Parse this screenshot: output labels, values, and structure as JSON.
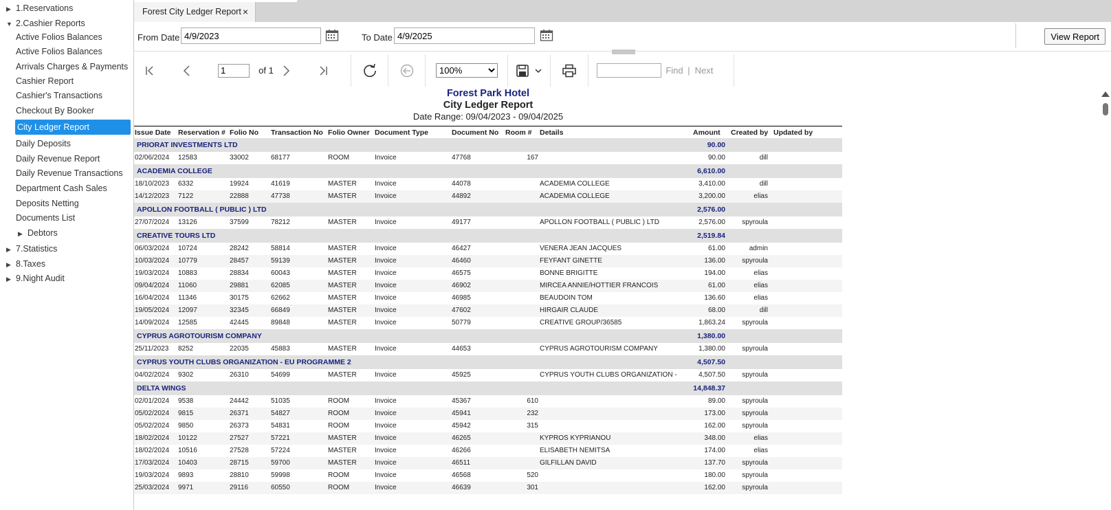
{
  "sidebar": {
    "items": [
      {
        "label": "1.Reservations",
        "type": "folder",
        "expanded": false
      },
      {
        "label": "2.Cashier Reports",
        "type": "folder",
        "expanded": true
      },
      {
        "label": "Active Folios Balances",
        "type": "leaf"
      },
      {
        "label": "Active Folios Balances",
        "type": "leaf"
      },
      {
        "label": "Arrivals Charges & Payments",
        "type": "leaf"
      },
      {
        "label": "Cashier Report",
        "type": "leaf"
      },
      {
        "label": "Cashier's Transactions",
        "type": "leaf"
      },
      {
        "label": "Checkout By Booker",
        "type": "leaf"
      },
      {
        "label": "City Ledger Report",
        "type": "leaf",
        "active": true
      },
      {
        "label": "Daily Deposits",
        "type": "leaf"
      },
      {
        "label": "Daily Revenue Report",
        "type": "leaf"
      },
      {
        "label": "Daily Revenue Transactions",
        "type": "leaf"
      },
      {
        "label": "Department Cash Sales",
        "type": "leaf"
      },
      {
        "label": "Deposits Netting",
        "type": "leaf"
      },
      {
        "label": "Documents List",
        "type": "leaf"
      },
      {
        "label": "Debtors",
        "type": "subfolder",
        "expanded": false
      },
      {
        "label": "7.Statistics",
        "type": "folder",
        "expanded": false
      },
      {
        "label": "8.Taxes",
        "type": "folder",
        "expanded": false
      },
      {
        "label": "9.Night Audit",
        "type": "folder",
        "expanded": false
      }
    ]
  },
  "tab": {
    "label": "Forest City Ledger Report",
    "close": "×"
  },
  "params": {
    "from_label": "From Date",
    "from_value": "4/9/2023",
    "to_label": "To Date",
    "to_value": "4/9/2025",
    "view_button": "View Report"
  },
  "toolbar": {
    "page_value": "1",
    "page_of": "of 1",
    "zoom": "100%",
    "find": "Find",
    "separator": "|",
    "next": "Next"
  },
  "report": {
    "hotel": "Forest Park Hotel",
    "title": "City Ledger Report",
    "date_range": "Date Range: 09/04/2023  - 09/04/2025",
    "columns": [
      "Issue Date",
      "Reservation #",
      "Folio No",
      "Transaction No",
      "Folio Owner",
      "Document Type",
      "Document No",
      "Room #",
      "Details",
      "Amount",
      "Created by",
      "Updated by"
    ],
    "rows": [
      {
        "group": true,
        "name": "PRIORAT INVESTMENTS LTD",
        "amount": "90.00"
      },
      {
        "c": [
          "02/06/2024",
          "12583",
          "33002",
          "68177",
          "ROOM",
          "Invoice",
          "47768",
          "167",
          "",
          "90.00",
          "dill",
          ""
        ]
      },
      {
        "group": true,
        "name": "ACADEMIA COLLEGE",
        "amount": "6,610.00"
      },
      {
        "c": [
          "18/10/2023",
          "6332",
          "19924",
          "41619",
          "MASTER",
          "Invoice",
          "44078",
          "",
          "ACADEMIA COLLEGE",
          "3,410.00",
          "dill",
          ""
        ]
      },
      {
        "c": [
          "14/12/2023",
          "7122",
          "22888",
          "47738",
          "MASTER",
          "Invoice",
          "44892",
          "",
          "ACADEMIA COLLEGE",
          "3,200.00",
          "elias",
          ""
        ]
      },
      {
        "group": true,
        "name": "APOLLON FOOTBALL ( PUBLIC ) LTD",
        "amount": "2,576.00"
      },
      {
        "c": [
          "27/07/2024",
          "13126",
          "37599",
          "78212",
          "MASTER",
          "Invoice",
          "49177",
          "",
          "APOLLON FOOTBALL ( PUBLIC ) LTD",
          "2,576.00",
          "spyroula",
          ""
        ]
      },
      {
        "group": true,
        "name": "CREATIVE TOURS LTD",
        "amount": "2,519.84"
      },
      {
        "c": [
          "06/03/2024",
          "10724",
          "28242",
          "58814",
          "MASTER",
          "Invoice",
          "46427",
          "",
          "VENERA JEAN JACQUES",
          "61.00",
          "admin",
          ""
        ]
      },
      {
        "c": [
          "10/03/2024",
          "10779",
          "28457",
          "59139",
          "MASTER",
          "Invoice",
          "46460",
          "",
          "FEYFANT GINETTE",
          "136.00",
          "spyroula",
          ""
        ]
      },
      {
        "c": [
          "19/03/2024",
          "10883",
          "28834",
          "60043",
          "MASTER",
          "Invoice",
          "46575",
          "",
          "BONNE BRIGITTE",
          "194.00",
          "elias",
          ""
        ]
      },
      {
        "c": [
          "09/04/2024",
          "11060",
          "29881",
          "62085",
          "MASTER",
          "Invoice",
          "46902",
          "",
          "MIRCEA ANNIE/HOTTIER FRANCOIS",
          "61.00",
          "elias",
          ""
        ]
      },
      {
        "c": [
          "16/04/2024",
          "11346",
          "30175",
          "62662",
          "MASTER",
          "Invoice",
          "46985",
          "",
          "BEAUDOIN TOM",
          "136.60",
          "elias",
          ""
        ]
      },
      {
        "c": [
          "19/05/2024",
          "12097",
          "32345",
          "66849",
          "MASTER",
          "Invoice",
          "47602",
          "",
          "HIRGAIR CLAUDE",
          "68.00",
          "dill",
          ""
        ]
      },
      {
        "c": [
          "14/09/2024",
          "12585",
          "42445",
          "89848",
          "MASTER",
          "Invoice",
          "50779",
          "",
          "CREATIVE GROUP/36585",
          "1,863.24",
          "spyroula",
          ""
        ]
      },
      {
        "group": true,
        "name": "CYPRUS AGROTOURISM COMPANY",
        "amount": "1,380.00"
      },
      {
        "c": [
          "25/11/2023",
          "8252",
          "22035",
          "45883",
          "MASTER",
          "Invoice",
          "44653",
          "",
          "CYPRUS AGROTOURISM COMPANY",
          "1,380.00",
          "spyroula",
          ""
        ]
      },
      {
        "group": true,
        "name": "CYPRUS YOUTH CLUBS ORGANIZATION - EU PROGRAMME 2",
        "amount": "4,507.50"
      },
      {
        "c": [
          "04/02/2024",
          "9302",
          "26310",
          "54699",
          "MASTER",
          "Invoice",
          "45925",
          "",
          "CYPRUS YOUTH CLUBS ORGANIZATION -",
          "4,507.50",
          "spyroula",
          ""
        ]
      },
      {
        "group": true,
        "name": "DELTA WINGS",
        "amount": "14,848.37"
      },
      {
        "c": [
          "02/01/2024",
          "9538",
          "24442",
          "51035",
          "ROOM",
          "Invoice",
          "45367",
          "610",
          "",
          "89.00",
          "spyroula",
          ""
        ]
      },
      {
        "c": [
          "05/02/2024",
          "9815",
          "26371",
          "54827",
          "ROOM",
          "Invoice",
          "45941",
          "232",
          "",
          "173.00",
          "spyroula",
          ""
        ]
      },
      {
        "c": [
          "05/02/2024",
          "9850",
          "26373",
          "54831",
          "ROOM",
          "Invoice",
          "45942",
          "315",
          "",
          "162.00",
          "spyroula",
          ""
        ]
      },
      {
        "c": [
          "18/02/2024",
          "10122",
          "27527",
          "57221",
          "MASTER",
          "Invoice",
          "46265",
          "",
          "KYPROS KYPRIANOU",
          "348.00",
          "elias",
          ""
        ]
      },
      {
        "c": [
          "18/02/2024",
          "10516",
          "27528",
          "57224",
          "MASTER",
          "Invoice",
          "46266",
          "",
          "ELISABETH NEMITSA",
          "174.00",
          "elias",
          ""
        ]
      },
      {
        "c": [
          "17/03/2024",
          "10403",
          "28715",
          "59700",
          "MASTER",
          "Invoice",
          "46511",
          "",
          "GILFILLAN DAVID",
          "137.70",
          "spyroula",
          ""
        ]
      },
      {
        "c": [
          "19/03/2024",
          "9893",
          "28810",
          "59998",
          "ROOM",
          "Invoice",
          "46568",
          "520",
          "",
          "180.00",
          "spyroula",
          ""
        ]
      },
      {
        "c": [
          "25/03/2024",
          "9971",
          "29116",
          "60550",
          "ROOM",
          "Invoice",
          "46639",
          "301",
          "",
          "162.00",
          "spyroula",
          ""
        ]
      }
    ]
  }
}
